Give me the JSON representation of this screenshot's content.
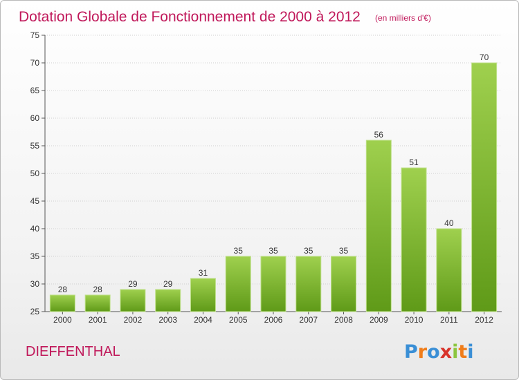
{
  "chart_data": {
    "type": "bar",
    "title": "Dotation Globale de Fonctionnement de 2000 à 2012",
    "unit_note": "(en milliers d'€)",
    "categories": [
      "2000",
      "2001",
      "2002",
      "2003",
      "2004",
      "2005",
      "2006",
      "2007",
      "2008",
      "2009",
      "2010",
      "2011",
      "2012"
    ],
    "values": [
      28,
      28,
      29,
      29,
      31,
      35,
      35,
      35,
      35,
      56,
      51,
      40,
      70
    ],
    "ylim": [
      25,
      75
    ],
    "yticks": [
      25,
      30,
      35,
      40,
      45,
      50,
      55,
      60,
      65,
      70,
      75
    ],
    "grid": true,
    "bar_color": "#7db52a"
  },
  "footer": {
    "town": "DIEFFENTHAL",
    "logo_letters": [
      "P",
      "r",
      "o",
      "x",
      "i",
      "t",
      "i"
    ],
    "logo_colors": [
      "#3a8fd6",
      "#f07d1a",
      "#3a8fd6",
      "#d8332a",
      "#8cc63f",
      "#f07d1a",
      "#3a8fd6"
    ]
  }
}
